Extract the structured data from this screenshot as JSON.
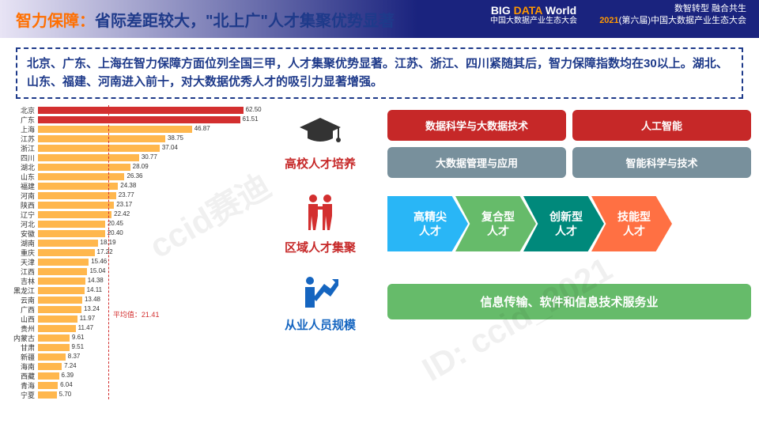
{
  "header": {
    "title_parts": [
      {
        "text": "智力保障：",
        "color": "#ff6f00"
      },
      {
        "text": "省际差距较大，\"北上广\"人才集聚优势显著",
        "color": "#1e3a8a"
      }
    ],
    "logo_big": "BIG DATA World",
    "logo_sub": "中国大数据产业生态大会",
    "right_line1": "数智转型  融合共生",
    "right_line2_year": "2021",
    "right_line2_rest": "(第六届)中国大数据产业生态大会"
  },
  "summary": "北京、广东、上海在智力保障方面位列全国三甲，人才集聚优势显著。江苏、浙江、四川紧随其后，智力保障指数均在30以上。湖北、山东、福建、河南进入前十，对大数据优秀人才的吸引力显著增强。",
  "chart": {
    "type": "bar",
    "max": 65,
    "avg_value": 21.41,
    "avg_label": "平均值：21.41",
    "bar_color_top2": "#d32f2f",
    "bar_color_rest": "#ffb74d",
    "label_fontsize": 9,
    "value_fontsize": 8,
    "data": [
      {
        "name": "北京",
        "value": 62.5
      },
      {
        "name": "广东",
        "value": 61.51
      },
      {
        "name": "上海",
        "value": 46.87
      },
      {
        "name": "江苏",
        "value": 38.75
      },
      {
        "name": "浙江",
        "value": 37.04
      },
      {
        "name": "四川",
        "value": 30.77
      },
      {
        "name": "湖北",
        "value": 28.09
      },
      {
        "name": "山东",
        "value": 26.36
      },
      {
        "name": "福建",
        "value": 24.38
      },
      {
        "name": "河南",
        "value": 23.77
      },
      {
        "name": "陕西",
        "value": 23.17
      },
      {
        "name": "辽宁",
        "value": 22.42
      },
      {
        "name": "河北",
        "value": 20.45
      },
      {
        "name": "安徽",
        "value": 20.4
      },
      {
        "name": "湖南",
        "value": 18.19
      },
      {
        "name": "重庆",
        "value": 17.22
      },
      {
        "name": "天津",
        "value": 15.46
      },
      {
        "name": "江西",
        "value": 15.04
      },
      {
        "name": "吉林",
        "value": 14.38
      },
      {
        "name": "黑龙江",
        "value": 14.11
      },
      {
        "name": "云南",
        "value": 13.48
      },
      {
        "name": "广西",
        "value": 13.24
      },
      {
        "name": "山西",
        "value": 11.97
      },
      {
        "name": "贵州",
        "value": 11.47
      },
      {
        "name": "内蒙古",
        "value": 9.61
      },
      {
        "name": "甘肃",
        "value": 9.51
      },
      {
        "name": "新疆",
        "value": 8.37
      },
      {
        "name": "海南",
        "value": 7.24
      },
      {
        "name": "西藏",
        "value": 6.39
      },
      {
        "name": "青海",
        "value": 6.04
      },
      {
        "name": "宁夏",
        "value": 5.7
      }
    ]
  },
  "sections": {
    "s1": {
      "title": "高校人才培养",
      "title_color": "#c62828",
      "icon": "graduation",
      "boxes": [
        {
          "label": "数据科学与大数据技术",
          "bg": "#c62828"
        },
        {
          "label": "人工智能",
          "bg": "#c62828"
        },
        {
          "label": "大数据管理与应用",
          "bg": "#78909c"
        },
        {
          "label": "智能科学与技术",
          "bg": "#78909c"
        }
      ]
    },
    "s2": {
      "title": "区域人才集聚",
      "title_color": "#c62828",
      "icon": "people",
      "arrows": [
        {
          "label": "高精尖\n人才",
          "bg": "#29b6f6"
        },
        {
          "label": "复合型\n人才",
          "bg": "#66bb6a"
        },
        {
          "label": "创新型\n人才",
          "bg": "#00897b"
        },
        {
          "label": "技能型\n人才",
          "bg": "#ff7043"
        }
      ]
    },
    "s3": {
      "title": "从业人员规模",
      "title_color": "#1565c0",
      "icon": "growth",
      "wide": {
        "label": "信息传输、软件和信息技术服务业",
        "bg": "#66bb6a"
      }
    }
  },
  "colors": {
    "header_blue": "#1a237e",
    "summary_border": "#1e3a8a"
  }
}
